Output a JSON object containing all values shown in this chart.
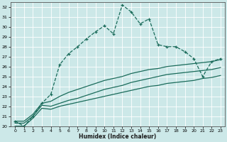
{
  "xlabel": "Humidex (Indice chaleur)",
  "background_color": "#cce8e8",
  "grid_color": "#b0d4d4",
  "line_color": "#1a6b5a",
  "xlim": [
    -0.5,
    23.5
  ],
  "ylim": [
    20,
    32.5
  ],
  "xticks": [
    0,
    1,
    2,
    3,
    4,
    5,
    6,
    7,
    8,
    9,
    10,
    11,
    12,
    13,
    14,
    15,
    16,
    17,
    18,
    19,
    20,
    21,
    22,
    23
  ],
  "yticks": [
    20,
    21,
    22,
    23,
    24,
    25,
    26,
    27,
    28,
    29,
    30,
    31,
    32
  ],
  "series": [
    [
      20.5,
      20.0,
      21.0,
      22.3,
      23.2,
      26.2,
      27.3,
      28.0,
      28.8,
      29.5,
      30.1,
      29.3,
      32.2,
      31.5,
      30.3,
      30.8,
      28.2,
      28.0,
      28.0,
      27.5,
      26.8,
      25.0,
      26.5,
      26.8
    ],
    [
      20.5,
      20.5,
      21.2,
      22.3,
      22.5,
      23.0,
      23.4,
      23.7,
      24.0,
      24.3,
      24.6,
      24.8,
      25.0,
      25.3,
      25.5,
      25.7,
      25.8,
      26.0,
      26.1,
      26.2,
      26.3,
      26.4,
      26.5,
      26.7
    ],
    [
      20.3,
      20.3,
      21.0,
      22.1,
      22.0,
      22.3,
      22.6,
      22.8,
      23.1,
      23.4,
      23.7,
      23.9,
      24.1,
      24.4,
      24.6,
      24.8,
      25.0,
      25.2,
      25.3,
      25.4,
      25.5,
      25.6,
      25.7,
      25.9
    ],
    [
      20.0,
      20.0,
      20.8,
      21.8,
      21.7,
      22.0,
      22.2,
      22.4,
      22.6,
      22.8,
      23.0,
      23.2,
      23.4,
      23.6,
      23.8,
      24.0,
      24.1,
      24.3,
      24.4,
      24.5,
      24.6,
      24.8,
      24.9,
      25.1
    ]
  ],
  "markers": [
    "+",
    null,
    null,
    null
  ],
  "linestyles": [
    "--",
    "-",
    "-",
    "-"
  ],
  "linewidths": [
    0.9,
    0.9,
    0.9,
    0.9
  ]
}
